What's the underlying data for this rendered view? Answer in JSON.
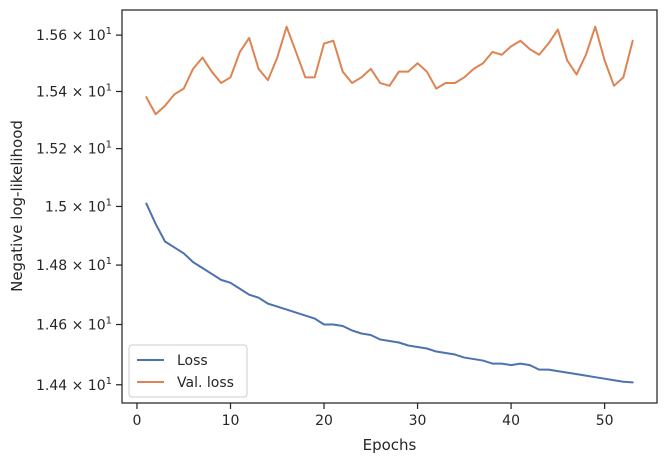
{
  "chart_data": {
    "type": "line",
    "title": "",
    "xlabel": "Epochs",
    "ylabel": "Negative log-likelihood",
    "xlim": [
      -1.6,
      55.6
    ],
    "ylim": [
      14.34,
      15.69
    ],
    "y_scale": "log",
    "grid": false,
    "legend_position": "lower-left",
    "x_ticks": [
      0,
      10,
      20,
      30,
      40,
      50
    ],
    "x_tick_labels": [
      "0",
      "10",
      "20",
      "30",
      "40",
      "50"
    ],
    "y_ticks": [
      14.4,
      14.6,
      14.8,
      15.0,
      15.2,
      15.4,
      15.6
    ],
    "y_tick_labels": [
      {
        "mantissa": "1.44",
        "base": "10",
        "exp": "1"
      },
      {
        "mantissa": "1.46",
        "base": "10",
        "exp": "1"
      },
      {
        "mantissa": "1.48",
        "base": "10",
        "exp": "1"
      },
      {
        "mantissa": "1.5",
        "base": "10",
        "exp": "1"
      },
      {
        "mantissa": "1.52",
        "base": "10",
        "exp": "1"
      },
      {
        "mantissa": "1.54",
        "base": "10",
        "exp": "1"
      },
      {
        "mantissa": "1.56",
        "base": "10",
        "exp": "1"
      }
    ],
    "x": [
      1,
      2,
      3,
      4,
      5,
      6,
      7,
      8,
      9,
      10,
      11,
      12,
      13,
      14,
      15,
      16,
      17,
      18,
      19,
      20,
      21,
      22,
      23,
      24,
      25,
      26,
      27,
      28,
      29,
      30,
      31,
      32,
      33,
      34,
      35,
      36,
      37,
      38,
      39,
      40,
      41,
      42,
      43,
      44,
      45,
      46,
      47,
      48,
      49,
      50,
      51,
      52,
      53
    ],
    "series": [
      {
        "name": "Loss",
        "color": "#4c72b0",
        "values": [
          15.01,
          14.94,
          14.88,
          14.86,
          14.84,
          14.81,
          14.79,
          14.77,
          14.75,
          14.74,
          14.72,
          14.7,
          14.69,
          14.67,
          14.66,
          14.65,
          14.64,
          14.63,
          14.62,
          14.6,
          14.6,
          14.595,
          14.58,
          14.57,
          14.565,
          14.55,
          14.545,
          14.54,
          14.53,
          14.525,
          14.52,
          14.51,
          14.505,
          14.5,
          14.49,
          14.485,
          14.48,
          14.47,
          14.47,
          14.465,
          14.47,
          14.465,
          14.45,
          14.45,
          14.445,
          14.44,
          14.435,
          14.43,
          14.425,
          14.42,
          14.415,
          14.41,
          14.408
        ]
      },
      {
        "name": "Val. loss",
        "color": "#dd8452",
        "values": [
          15.38,
          15.32,
          15.35,
          15.39,
          15.41,
          15.48,
          15.52,
          15.47,
          15.43,
          15.45,
          15.54,
          15.59,
          15.48,
          15.44,
          15.52,
          15.63,
          15.54,
          15.45,
          15.45,
          15.57,
          15.58,
          15.47,
          15.43,
          15.45,
          15.48,
          15.43,
          15.42,
          15.47,
          15.47,
          15.5,
          15.47,
          15.41,
          15.43,
          15.43,
          15.45,
          15.48,
          15.5,
          15.54,
          15.53,
          15.56,
          15.58,
          15.55,
          15.53,
          15.57,
          15.62,
          15.51,
          15.46,
          15.53,
          15.63,
          15.51,
          15.42,
          15.45,
          15.58
        ]
      }
    ]
  }
}
